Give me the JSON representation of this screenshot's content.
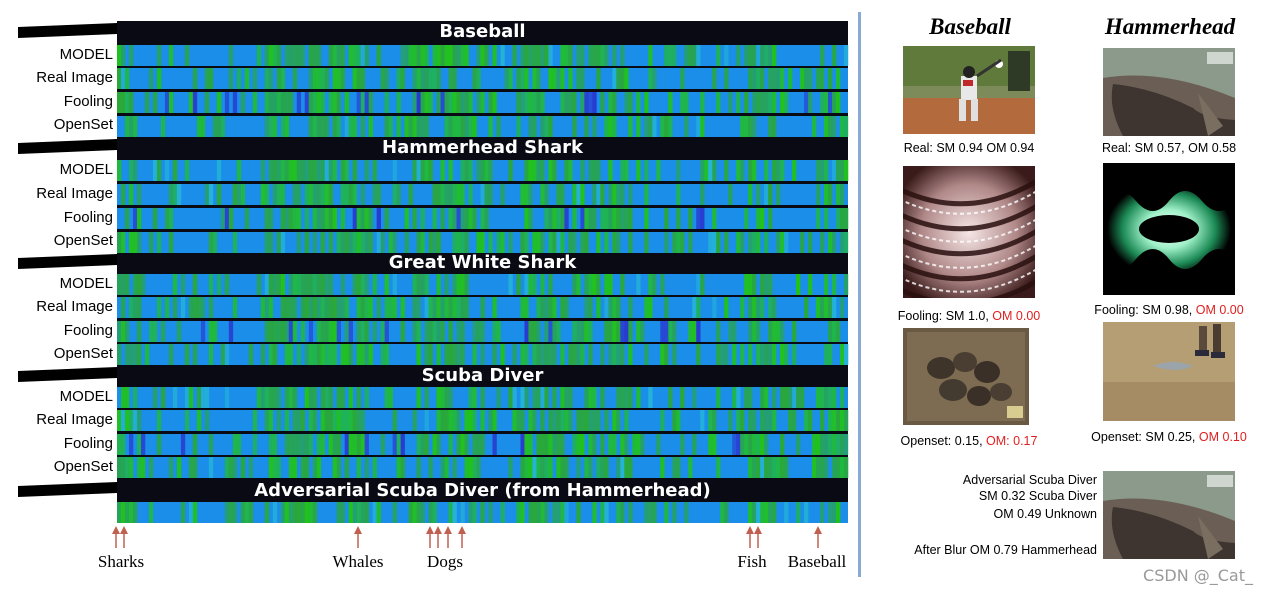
{
  "heatmap": {
    "groups": [
      {
        "title": "Baseball",
        "rows": [
          "MODEL",
          "Real Image",
          "Fooling",
          "OpenSet"
        ]
      },
      {
        "title": "Hammerhead Shark",
        "rows": [
          "MODEL",
          "Real Image",
          "Fooling",
          "OpenSet"
        ]
      },
      {
        "title": "Great White Shark",
        "rows": [
          "MODEL",
          "Real Image",
          "Fooling",
          "OpenSet"
        ]
      },
      {
        "title": "Scuba Diver",
        "rows": [
          "MODEL",
          "Real Image",
          "Fooling",
          "OpenSet"
        ]
      },
      {
        "title": "Adversarial Scuba Diver (from Hammerhead)",
        "rows": []
      }
    ],
    "arrow_labels": [
      "Sharks",
      "Whales",
      "Dogs",
      "Fish",
      "Baseball"
    ]
  },
  "panel": {
    "col_titles": [
      "Baseball",
      "Hammerhead"
    ],
    "baseball": {
      "real_caption": "Real: SM 0.94  OM 0.94",
      "fooling_prefix": "Fooling: SM 1.0, ",
      "fooling_om": "OM 0.00",
      "openset_prefix": "Openset: 0.15,  ",
      "openset_om": "OM: 0.17"
    },
    "hammerhead": {
      "real_caption": "Real: SM 0.57, OM 0.58",
      "fooling_prefix": "Fooling: SM 0.98, ",
      "fooling_om": "OM 0.00",
      "openset_prefix": "Openset: SM 0.25, ",
      "openset_om": "OM 0.10"
    },
    "adversarial": {
      "line1": "Adversarial Scuba Diver",
      "line2": "SM 0.32 Scuba Diver",
      "line3": "OM 0.49 Unknown",
      "line4": "After Blur OM 0.79 Hammerhead"
    }
  },
  "watermark": "CSDN @_Cat_"
}
